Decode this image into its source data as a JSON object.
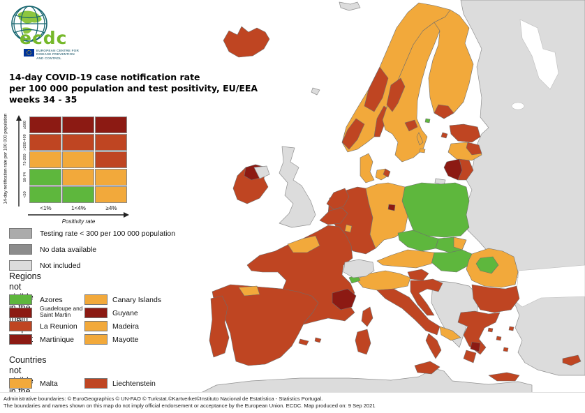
{
  "logo": {
    "wordmark": "ecdc",
    "subtitle_line1": "EUROPEAN CENTRE FOR",
    "subtitle_line2": "DISEASE PREVENTION",
    "subtitle_line3": "AND CONTROL"
  },
  "title": {
    "line1": "14-day COVID-19 case notification rate",
    "line2": "per 100 000 population and test positivity, EU/EEA",
    "line3": "weeks 34 - 35"
  },
  "matrix_legend": {
    "y_axis_label": "14-day notification rate per 100 000 population",
    "x_axis_label": "Positivity rate",
    "row_labels": [
      "≥500",
      ">200-499",
      "75-200",
      "50-74",
      "<50"
    ],
    "col_labels": [
      "<1%",
      "1<4%",
      "≥4%"
    ],
    "cell_colors": [
      [
        "dark_red",
        "dark_red",
        "dark_red"
      ],
      [
        "red",
        "red",
        "red"
      ],
      [
        "orange",
        "orange",
        "red"
      ],
      [
        "green",
        "orange",
        "orange"
      ],
      [
        "green",
        "green",
        "orange"
      ]
    ]
  },
  "status_legend": [
    {
      "label": "Testing rate < 300 per 100 000 population",
      "color_key": "gray_testing"
    },
    {
      "label": "No data available",
      "color_key": "gray_nodata"
    },
    {
      "label": "Not included",
      "color_key": "not_included"
    }
  ],
  "regions_legend": {
    "heading_line1": "Regions not visible",
    "heading_line2": "in the main map extent",
    "items": [
      {
        "label": "Azores",
        "color_key": "green"
      },
      {
        "label": "Canary Islands",
        "color_key": "orange"
      },
      {
        "label": "Guadeloupe and Saint Martin",
        "color_key": "dark_red"
      },
      {
        "label": "Guyane",
        "color_key": "dark_red"
      },
      {
        "label": "La Reunion",
        "color_key": "red"
      },
      {
        "label": "Madeira",
        "color_key": "orange"
      },
      {
        "label": "Martinique",
        "color_key": "dark_red"
      },
      {
        "label": "Mayotte",
        "color_key": "orange"
      }
    ]
  },
  "countries_legend": {
    "heading_line1": "Countries not visible",
    "heading_line2": "in the main map extent",
    "items": [
      {
        "label": "Malta",
        "color_key": "orange"
      },
      {
        "label": "Liechtenstein",
        "color_key": "red"
      }
    ]
  },
  "footer": {
    "line1": "Administrative boundaries: © EuroGeographics © UN-FAO © Turkstat.©Kartverket©Instituto Nacional de Estatística - Statistics Portugal.",
    "line2": "The boundaries and names shown on this map do not imply official endorsement or acceptance by the European Union. ECDC. Map produced on: 9 Sep 2021"
  },
  "colors": {
    "green": "#5eb73d",
    "orange": "#f2a93b",
    "red": "#bf4522",
    "dark_red": "#8c1a13",
    "gray_testing": "#ababab",
    "gray_nodata": "#8c8c8c",
    "not_included": "#dcdcdc",
    "sea": "#ffffff"
  },
  "map": {
    "regions": [
      {
        "id": "svalbard",
        "color_key": "not_included"
      },
      {
        "id": "russia-east",
        "color_key": "not_included"
      },
      {
        "id": "turkey",
        "color_key": "not_included"
      },
      {
        "id": "west-balkans",
        "color_key": "not_included"
      },
      {
        "id": "uk",
        "color_key": "not_included"
      },
      {
        "id": "northern-ireland",
        "color_key": "not_included"
      },
      {
        "id": "north-africa",
        "color_key": "not_included"
      },
      {
        "id": "faroe",
        "color_key": "not_included"
      },
      {
        "id": "kaliningrad",
        "color_key": "not_included"
      },
      {
        "id": "switzerland",
        "color_key": "not_included"
      },
      {
        "id": "iceland",
        "color_key": "red"
      },
      {
        "id": "norway",
        "color_key": "orange"
      },
      {
        "id": "norway-nw",
        "color_key": "red"
      },
      {
        "id": "norway-oslo",
        "color_key": "red"
      },
      {
        "id": "norway-south",
        "color_key": "red"
      },
      {
        "id": "sweden",
        "color_key": "orange"
      },
      {
        "id": "sweden-west",
        "color_key": "red"
      },
      {
        "id": "sweden-central",
        "color_key": "red"
      },
      {
        "id": "gotland",
        "color_key": "orange"
      },
      {
        "id": "bornholm",
        "color_key": "orange"
      },
      {
        "id": "finland",
        "color_key": "orange"
      },
      {
        "id": "finland-sw",
        "color_key": "red"
      },
      {
        "id": "aland",
        "color_key": "green"
      },
      {
        "id": "denmark",
        "color_key": "orange"
      },
      {
        "id": "denmark-zealand",
        "color_key": "orange"
      },
      {
        "id": "denmark-copenhagen",
        "color_key": "red"
      },
      {
        "id": "estonia",
        "color_key": "red"
      },
      {
        "id": "estonia-islands",
        "color_key": "red"
      },
      {
        "id": "latvia",
        "color_key": "orange"
      },
      {
        "id": "latvia-east",
        "color_key": "red"
      },
      {
        "id": "lithuania-west",
        "color_key": "dark_red"
      },
      {
        "id": "lithuania-east",
        "color_key": "red"
      },
      {
        "id": "poland",
        "color_key": "green"
      },
      {
        "id": "germany-west",
        "color_key": "red"
      },
      {
        "id": "germany-east",
        "color_key": "orange"
      },
      {
        "id": "berlin",
        "color_key": "dark_red"
      },
      {
        "id": "netherlands",
        "color_key": "red"
      },
      {
        "id": "belgium",
        "color_key": "red"
      },
      {
        "id": "luxembourg",
        "color_key": "orange"
      },
      {
        "id": "czechia",
        "color_key": "green"
      },
      {
        "id": "slovakia",
        "color_key": "green"
      },
      {
        "id": "slovakia-east",
        "color_key": "orange"
      },
      {
        "id": "hungary",
        "color_key": "green"
      },
      {
        "id": "austria",
        "color_key": "orange"
      },
      {
        "id": "france",
        "color_key": "red"
      },
      {
        "id": "france-normandy",
        "color_key": "orange"
      },
      {
        "id": "france-paca",
        "color_key": "dark_red"
      },
      {
        "id": "corsica",
        "color_key": "red"
      },
      {
        "id": "spain",
        "color_key": "red"
      },
      {
        "id": "spain-north",
        "color_key": "orange"
      },
      {
        "id": "balearic-1",
        "color_key": "red"
      },
      {
        "id": "balearic-2",
        "color_key": "red"
      },
      {
        "id": "portugal",
        "color_key": "red"
      },
      {
        "id": "italy-north",
        "color_key": "orange"
      },
      {
        "id": "aosta",
        "color_key": "green"
      },
      {
        "id": "italy-central",
        "color_key": "red"
      },
      {
        "id": "puglia",
        "color_key": "orange"
      },
      {
        "id": "calabria",
        "color_key": "red"
      },
      {
        "id": "sicily",
        "color_key": "red"
      },
      {
        "id": "sardinia",
        "color_key": "red"
      },
      {
        "id": "slovenia",
        "color_key": "red"
      },
      {
        "id": "croatia",
        "color_key": "red"
      },
      {
        "id": "romania",
        "color_key": "orange"
      },
      {
        "id": "romania-center",
        "color_key": "green"
      },
      {
        "id": "bulgaria",
        "color_key": "red"
      },
      {
        "id": "greece",
        "color_key": "red"
      },
      {
        "id": "greece-attica",
        "color_key": "dark_red"
      },
      {
        "id": "peloponnese",
        "color_key": "red"
      },
      {
        "id": "crete",
        "color_key": "red"
      },
      {
        "id": "aegean-1",
        "color_key": "red"
      },
      {
        "id": "aegean-2",
        "color_key": "red"
      },
      {
        "id": "aegean-3",
        "color_key": "red"
      },
      {
        "id": "aegean-4",
        "color_key": "red"
      },
      {
        "id": "ireland",
        "color_key": "red"
      },
      {
        "id": "ireland-north",
        "color_key": "dark_red"
      },
      {
        "id": "cyprus",
        "color_key": "red"
      }
    ]
  }
}
